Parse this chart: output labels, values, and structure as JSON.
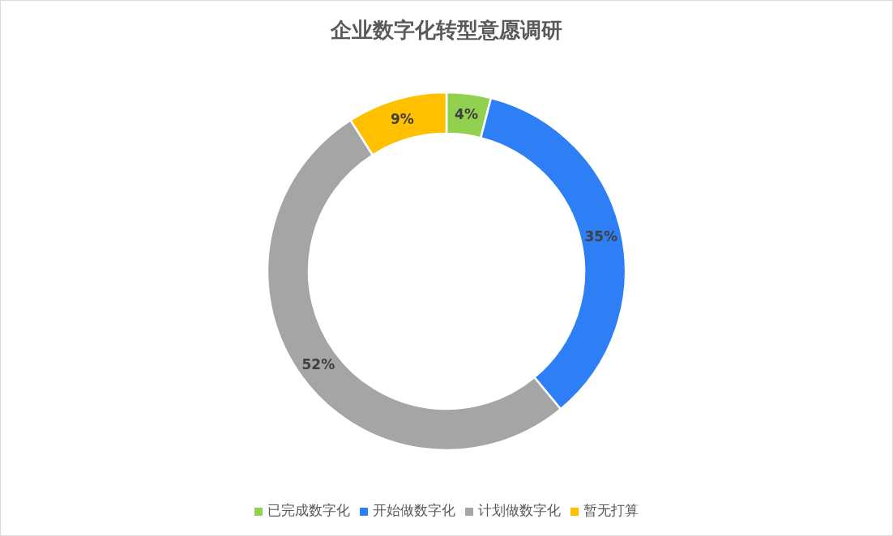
{
  "chart_data": {
    "type": "donut",
    "title": "企业数字化转型意愿调研",
    "categories": [
      "已完成数字化",
      "开始做数字化",
      "计划做数字化",
      "暂无打算"
    ],
    "values": [
      4,
      35,
      52,
      9
    ],
    "value_labels": [
      "4%",
      "35%",
      "52%",
      "9%"
    ],
    "colors": [
      "#92d050",
      "#2e7ff6",
      "#a5a5a5",
      "#ffc000"
    ],
    "legend": "bottom"
  }
}
